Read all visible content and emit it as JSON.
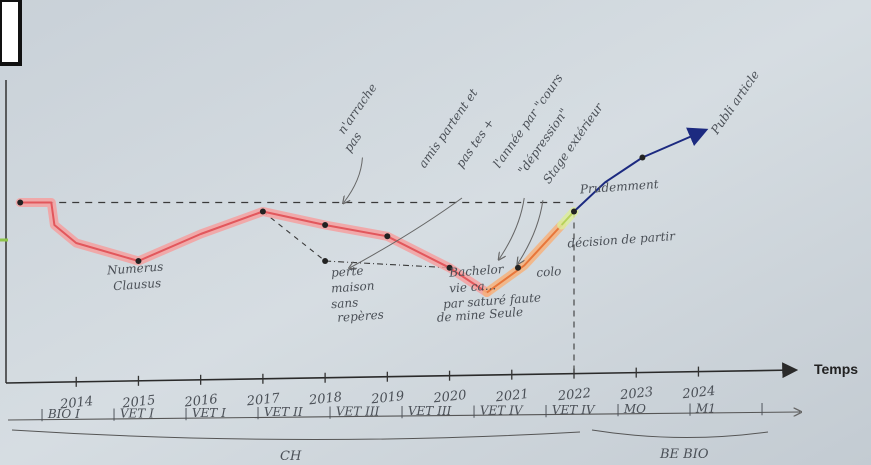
{
  "chart_data": {
    "type": "line",
    "title": "",
    "xlabel": "Temps",
    "ylabel": "",
    "x_ticks": [
      "2014",
      "2015",
      "2016",
      "2017",
      "2018",
      "2019",
      "2020",
      "2021",
      "2022",
      "2023",
      "2024"
    ],
    "x_range": [
      2013.0,
      2024.7
    ],
    "y_range": [
      -6,
      6
    ],
    "baseline_y": 1,
    "series": [
      {
        "name": "",
        "color": "#e2575c",
        "highlight": "#f4a0a0",
        "points": [
          [
            2013.1,
            1
          ],
          [
            2013.6,
            1
          ],
          [
            2013.65,
            0
          ],
          [
            2014.0,
            -0.8
          ],
          [
            2015.0,
            -1.6
          ],
          [
            2016.0,
            -0.4
          ],
          [
            2017.0,
            0.6
          ],
          [
            2018.0,
            0
          ],
          [
            2019.0,
            -0.5
          ],
          [
            2020.0,
            -1.9
          ],
          [
            2020.6,
            -3.0
          ]
        ]
      },
      {
        "name": "",
        "color": "#e8763a",
        "highlight": "#f6b27c",
        "points": [
          [
            2020.6,
            -3.0
          ],
          [
            2021.2,
            -1.8
          ],
          [
            2021.8,
            0.0
          ]
        ]
      },
      {
        "name": "",
        "color": "#b7d25a",
        "highlight": "#dceb9c",
        "points": [
          [
            2021.8,
            0.0
          ],
          [
            2022.0,
            0.6
          ]
        ]
      },
      {
        "name": "",
        "color": "#1c2a80",
        "highlight": "",
        "points": [
          [
            2022.0,
            0.6
          ],
          [
            2022.5,
            1.9
          ],
          [
            2023.1,
            3.0
          ],
          [
            2024.1,
            4.2
          ]
        ]
      }
    ],
    "dots": [
      [
        2013.1,
        1
      ],
      [
        2015.0,
        -1.6
      ],
      [
        2017.0,
        0.6
      ],
      [
        2018.0,
        0
      ],
      [
        2019.0,
        -0.5
      ],
      [
        2020.0,
        -1.9
      ],
      [
        2021.1,
        -1.9
      ],
      [
        2022.0,
        0.6
      ],
      [
        2023.1,
        3.0
      ],
      [
        2018.0,
        -1.6
      ]
    ],
    "annotations": [
      {
        "text": "Numerus",
        "x": 2014.5,
        "y": -2.2
      },
      {
        "text": "Clausus",
        "x": 2014.6,
        "y": -2.9
      },
      {
        "text": "n'arrache",
        "x": 2018.3,
        "y": 4.0
      },
      {
        "text": "pas",
        "x": 2018.4,
        "y": 3.2
      },
      {
        "text": "perte",
        "x": 2018.1,
        "y": -2.3
      },
      {
        "text": "maison",
        "x": 2018.1,
        "y": -3.0
      },
      {
        "text": "sans",
        "x": 2018.1,
        "y": -3.7
      },
      {
        "text": "repères",
        "x": 2018.2,
        "y": -4.3
      },
      {
        "text": "Bachelor",
        "x": 2020.0,
        "y": -2.3
      },
      {
        "text": "vie ca...",
        "x": 2020.0,
        "y": -3.0
      },
      {
        "text": "par saturé faute",
        "x": 2019.9,
        "y": -3.7
      },
      {
        "text": "de mine Seule",
        "x": 2019.8,
        "y": -4.3
      },
      {
        "text": "colo",
        "x": 2021.4,
        "y": -2.3
      },
      {
        "text": "décision de partir",
        "x": 2021.9,
        "y": -1.0
      },
      {
        "text": "amis partent et",
        "x": 2019.6,
        "y": 2.5
      },
      {
        "text": "pas tes +",
        "x": 2020.2,
        "y": 2.5
      },
      {
        "text": "l'année par \"cours",
        "x": 2020.8,
        "y": 2.5
      },
      {
        "text": "\"dépression\"",
        "x": 2021.2,
        "y": 2.2
      },
      {
        "text": "Stage extérieur",
        "x": 2021.6,
        "y": 1.8
      },
      {
        "text": "Prudemment",
        "x": 2022.1,
        "y": 1.4
      },
      {
        "text": "Publi article",
        "x": 2024.3,
        "y": 4.0
      }
    ],
    "periods": [
      "| BIO I",
      "| VET I",
      "| VET I",
      "| VET II",
      "| VET III",
      "| VET III",
      "| VET IV",
      "| VET IV",
      "| MO",
      "| M1",
      "|"
    ],
    "groups": [
      "CH",
      "BE BIO"
    ],
    "grid": false,
    "legend": "none"
  }
}
